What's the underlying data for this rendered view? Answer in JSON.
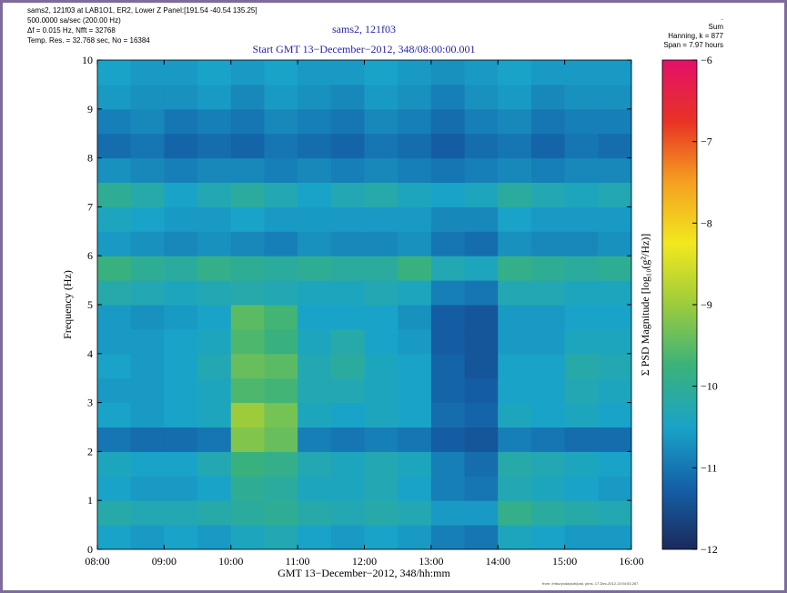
{
  "header": {
    "left": [
      "sams2, 121f03 at LAB1O1, ER2, Lower Z Panel:[191.54 -40.54 135.25]",
      "500.0000 sa/sec (200.00 Hz)",
      "Δf = 0.015 Hz,  Nfft = 32768",
      "Temp. Res. = 32.768 sec, No = 16384"
    ],
    "right": [
      ".",
      "Sum",
      "Hanning, k = 877",
      "Span = 7.97 hours"
    ],
    "footer": "from: /misc/yoda/pub/pad, pims, 17-Dec-2012,13:04:53.267"
  },
  "chart_data": {
    "type": "heatmap",
    "title": "sams2, 121f03",
    "subtitle": "Start GMT 13−December−2012, 348/08:00:00.001",
    "xlabel": "GMT 13−December−2012, 348/hh:mm",
    "ylabel": "Frequency (Hz)",
    "zlabel": "Σ PSD Magnitude [log₁₀(g²/Hz)]",
    "xlim": [
      8,
      16
    ],
    "xticks": [
      {
        "value": 8,
        "label": "08:00"
      },
      {
        "value": 9,
        "label": "09:00"
      },
      {
        "value": 10,
        "label": "10:00"
      },
      {
        "value": 11,
        "label": "11:00"
      },
      {
        "value": 12,
        "label": "12:00"
      },
      {
        "value": 13,
        "label": "13:00"
      },
      {
        "value": 14,
        "label": "14:00"
      },
      {
        "value": 15,
        "label": "15:00"
      },
      {
        "value": 16,
        "label": "16:00"
      }
    ],
    "ylim": [
      0,
      10
    ],
    "yticks": [
      0,
      1,
      2,
      3,
      4,
      5,
      6,
      7,
      8,
      9,
      10
    ],
    "zlim": [
      -12,
      -6
    ],
    "zticks": [
      {
        "value": -6,
        "label": "−6"
      },
      {
        "value": -7,
        "label": "−7"
      },
      {
        "value": -8,
        "label": "−8"
      },
      {
        "value": -9,
        "label": "−9"
      },
      {
        "value": -10,
        "label": "−10"
      },
      {
        "value": -11,
        "label": "−11"
      },
      {
        "value": -12,
        "label": "−12"
      }
    ],
    "colormap": [
      "#1b2a5c",
      "#1460a8",
      "#1aa3c8",
      "#3ab27a",
      "#9ccc3c",
      "#f2e81e",
      "#f5a020",
      "#e83224",
      "#e4106a"
    ],
    "z": [
      [
        -10.5,
        -10.6,
        -10.5,
        -10.6,
        -10.4,
        -10.3,
        -10.5,
        -10.6,
        -10.5,
        -10.6,
        -10.9,
        -11.0,
        -10.4,
        -10.5,
        -10.6,
        -10.6
      ],
      [
        -10.2,
        -10.3,
        -10.3,
        -10.2,
        -10.1,
        -10.0,
        -10.2,
        -10.3,
        -10.2,
        -10.3,
        -10.6,
        -10.6,
        -9.9,
        -10.1,
        -10.2,
        -10.3
      ],
      [
        -10.5,
        -10.6,
        -10.6,
        -10.5,
        -10.0,
        -10.1,
        -10.4,
        -10.4,
        -10.3,
        -10.5,
        -10.9,
        -11.0,
        -10.3,
        -10.4,
        -10.5,
        -10.6
      ],
      [
        -10.4,
        -10.5,
        -10.5,
        -10.3,
        -9.8,
        -9.9,
        -10.3,
        -10.4,
        -10.3,
        -10.4,
        -10.9,
        -11.1,
        -10.2,
        -10.3,
        -10.4,
        -10.5
      ],
      [
        -11.0,
        -11.1,
        -11.1,
        -11.0,
        -9.2,
        -9.4,
        -10.9,
        -11.0,
        -10.9,
        -11.0,
        -11.3,
        -11.4,
        -10.9,
        -11.0,
        -11.1,
        -11.1
      ],
      [
        -10.5,
        -10.6,
        -10.5,
        -10.4,
        -9.0,
        -9.3,
        -10.4,
        -10.5,
        -10.4,
        -10.5,
        -11.1,
        -11.2,
        -10.4,
        -10.5,
        -10.4,
        -10.5
      ],
      [
        -10.6,
        -10.6,
        -10.5,
        -10.4,
        -9.6,
        -9.7,
        -10.3,
        -10.3,
        -10.4,
        -10.5,
        -11.2,
        -11.3,
        -10.5,
        -10.5,
        -10.3,
        -10.4
      ],
      [
        -10.5,
        -10.6,
        -10.5,
        -10.3,
        -9.4,
        -9.5,
        -10.3,
        -10.1,
        -10.4,
        -10.5,
        -11.2,
        -11.4,
        -10.5,
        -10.5,
        -10.2,
        -10.3
      ],
      [
        -10.6,
        -10.6,
        -10.5,
        -10.4,
        -9.6,
        -9.8,
        -10.4,
        -10.2,
        -10.5,
        -10.6,
        -11.3,
        -11.4,
        -10.6,
        -10.6,
        -10.4,
        -10.4
      ],
      [
        -10.6,
        -10.7,
        -10.6,
        -10.5,
        -9.5,
        -9.7,
        -10.5,
        -10.5,
        -10.5,
        -10.7,
        -11.3,
        -11.4,
        -10.6,
        -10.6,
        -10.5,
        -10.5
      ],
      [
        -10.2,
        -10.3,
        -10.4,
        -10.3,
        -10.2,
        -10.3,
        -10.4,
        -10.4,
        -10.3,
        -10.4,
        -10.9,
        -11.0,
        -10.3,
        -10.3,
        -10.4,
        -10.4
      ],
      [
        -9.8,
        -10.0,
        -10.1,
        -9.9,
        -10.0,
        -10.1,
        -10.0,
        -10.1,
        -10.1,
        -9.8,
        -10.3,
        -10.4,
        -9.9,
        -10.0,
        -10.1,
        -10.0
      ],
      [
        -10.6,
        -10.7,
        -10.8,
        -10.7,
        -10.8,
        -10.9,
        -10.7,
        -10.8,
        -10.8,
        -10.7,
        -11.0,
        -11.1,
        -10.7,
        -10.8,
        -10.8,
        -10.7
      ],
      [
        -10.4,
        -10.5,
        -10.6,
        -10.6,
        -10.5,
        -10.6,
        -10.6,
        -10.6,
        -10.6,
        -10.6,
        -10.8,
        -10.8,
        -10.5,
        -10.6,
        -10.6,
        -10.6
      ],
      [
        -10.0,
        -10.2,
        -10.5,
        -10.3,
        -10.1,
        -10.3,
        -10.5,
        -10.3,
        -10.2,
        -10.4,
        -10.5,
        -10.4,
        -10.1,
        -10.3,
        -10.4,
        -10.3
      ],
      [
        -10.7,
        -10.8,
        -10.9,
        -10.8,
        -10.8,
        -10.9,
        -10.8,
        -10.9,
        -10.8,
        -10.9,
        -11.0,
        -10.9,
        -10.8,
        -10.9,
        -10.8,
        -10.8
      ],
      [
        -11.1,
        -11.0,
        -11.2,
        -11.1,
        -11.2,
        -11.0,
        -11.1,
        -11.2,
        -11.0,
        -11.1,
        -11.3,
        -11.1,
        -11.0,
        -11.2,
        -11.0,
        -11.1
      ],
      [
        -10.9,
        -10.8,
        -11.0,
        -10.9,
        -11.0,
        -10.8,
        -10.9,
        -11.0,
        -10.8,
        -10.9,
        -11.1,
        -10.9,
        -10.8,
        -11.0,
        -10.9,
        -10.9
      ],
      [
        -10.6,
        -10.7,
        -10.7,
        -10.6,
        -10.8,
        -10.6,
        -10.7,
        -10.8,
        -10.6,
        -10.7,
        -10.9,
        -10.7,
        -10.6,
        -10.8,
        -10.7,
        -10.7
      ],
      [
        -10.5,
        -10.6,
        -10.6,
        -10.5,
        -10.6,
        -10.5,
        -10.6,
        -10.6,
        -10.5,
        -10.6,
        -10.7,
        -10.6,
        -10.5,
        -10.6,
        -10.6,
        -10.6
      ]
    ]
  }
}
